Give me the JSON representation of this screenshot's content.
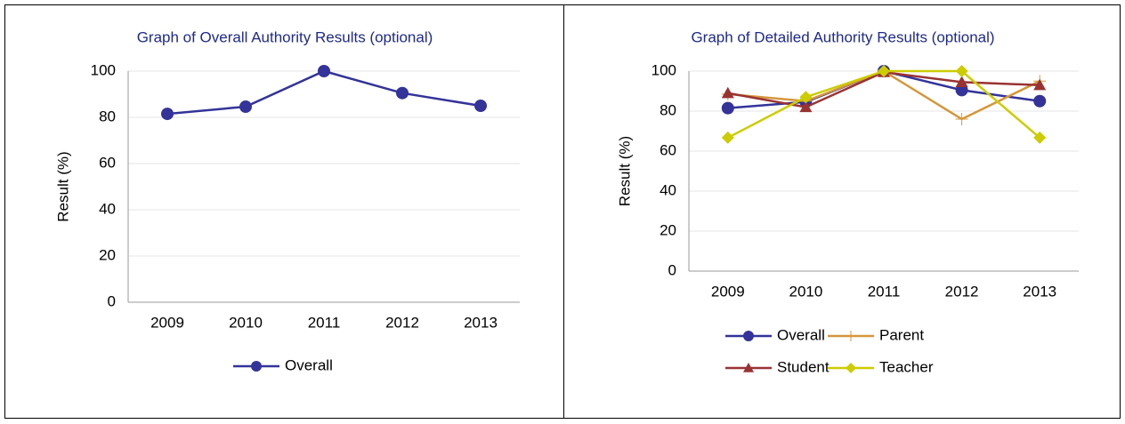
{
  "chart_data": [
    {
      "type": "line",
      "title": "Graph of Overall Authority Results (optional)",
      "y_label": "Result (%)",
      "categories": [
        "2009",
        "2010",
        "2011",
        "2012",
        "2013"
      ],
      "series": [
        {
          "name": "Overall",
          "color": "#333399",
          "marker": "circle",
          "values": [
            81.5,
            84.6,
            100,
            90.5,
            85
          ]
        }
      ],
      "ylim": [
        0,
        100
      ],
      "yticks": [
        0,
        20,
        40,
        60,
        80,
        100
      ],
      "grid": true,
      "legend": "bottom"
    },
    {
      "type": "line",
      "title": "Graph of Detailed Authority Results (optional)",
      "y_label": "Result (%)",
      "categories": [
        "2009",
        "2010",
        "2011",
        "2012",
        "2013"
      ],
      "series": [
        {
          "name": "Overall",
          "color": "#333399",
          "marker": "circle",
          "values": [
            81.5,
            84.6,
            100,
            90.5,
            85
          ]
        },
        {
          "name": "Parent",
          "color": "#d4973b",
          "marker": "plus",
          "values": [
            88.5,
            85,
            100,
            76,
            95
          ]
        },
        {
          "name": "Student",
          "color": "#993333",
          "marker": "triangle",
          "values": [
            89,
            82,
            99.5,
            94.5,
            93
          ]
        },
        {
          "name": "Teacher",
          "color": "#cccc00",
          "marker": "diamond",
          "values": [
            66.7,
            87,
            100,
            100,
            66.7
          ]
        }
      ],
      "ylim": [
        0,
        100
      ],
      "yticks": [
        0,
        20,
        40,
        60,
        80,
        100
      ],
      "grid": true,
      "legend": "bottom"
    }
  ]
}
